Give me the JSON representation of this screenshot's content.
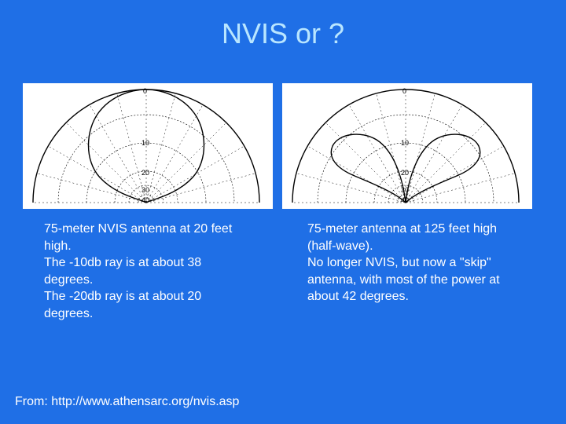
{
  "slide": {
    "title": "NVIS or ?",
    "source": "From: http://www.athensarc.org/nvis.asp"
  },
  "left_plot": {
    "ring_labels": [
      "0",
      "10",
      "20",
      "30",
      "40"
    ],
    "caption_lines": [
      "75-meter NVIS antenna at 20 feet high.",
      "The -10db ray is at about 38 degrees.",
      "The -20db ray is at about 20 degrees."
    ]
  },
  "right_plot": {
    "ring_labels": [
      "0",
      "10",
      "20",
      "30",
      "40"
    ],
    "caption_lines": [
      "75-meter antenna at 125 feet high (half-wave).",
      "No longer NVIS, but now a \"skip\" antenna, with most of the power at about 42 degrees."
    ]
  },
  "colors": {
    "background": "#1f6fe6",
    "title": "#b9e6ff",
    "text": "#ffffff",
    "plot_line": "#000000"
  }
}
